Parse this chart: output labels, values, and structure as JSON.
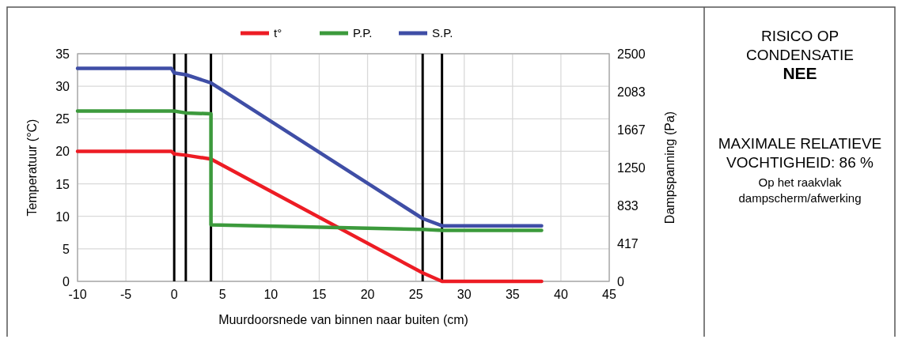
{
  "chart_data": [
    {
      "type": "line",
      "xlabel": "Muurdoorsnede van binnen naar buiten (cm)",
      "ylabel": "Temperatuur (°C)",
      "y2label": "Dampspanning (Pa)",
      "xlim": [
        -10,
        45
      ],
      "xticks": [
        -10,
        -5,
        0,
        5,
        10,
        15,
        20,
        25,
        30,
        35,
        40,
        45
      ],
      "ylim": [
        0,
        35
      ],
      "yticks": [
        0,
        5,
        10,
        15,
        20,
        25,
        30,
        35
      ],
      "y2lim": [
        0,
        2500
      ],
      "y2ticks": [
        0,
        417,
        833,
        1250,
        1667,
        2083,
        2500
      ],
      "grid": true,
      "legend": "top",
      "marker": "none",
      "line_style": "solid",
      "series": [
        {
          "name": "t°",
          "color": "#ed1c24",
          "x": [
            -10,
            -0.3,
            0,
            1.2,
            3.8,
            25.7,
            27.7,
            38
          ],
          "values": [
            20,
            20,
            19.6,
            19.4,
            18.8,
            1.3,
            0,
            0
          ]
        },
        {
          "name": "P.P.",
          "color": "#3c9a3c",
          "axis": "y2",
          "x": [
            -10,
            0,
            1.2,
            3.8,
            3.8,
            25.7,
            27.7,
            38
          ],
          "values": [
            1870,
            1870,
            1850,
            1840,
            620,
            570,
            560,
            560
          ]
        },
        {
          "name": "S.P.",
          "color": "#3f4ea6",
          "axis": "y2",
          "x": [
            -10,
            -0.3,
            0,
            1.2,
            3.8,
            25.7,
            27.7,
            38
          ],
          "values": [
            2340,
            2340,
            2290,
            2270,
            2180,
            690,
            610,
            610
          ]
        }
      ],
      "ref_lines": [
        {
          "axis": "x",
          "value": 0,
          "color": "#000000"
        },
        {
          "axis": "x",
          "value": 1.2,
          "color": "#000000"
        },
        {
          "axis": "x",
          "value": 3.8,
          "color": "#000000"
        },
        {
          "axis": "x",
          "value": 25.7,
          "color": "#000000"
        },
        {
          "axis": "x",
          "value": 27.7,
          "color": "#000000"
        }
      ]
    },
    {
      "type": "other",
      "title": "RISICO OP CONDENSATIE",
      "annotations": [
        "NEE",
        "MAXIMALE RELATIEVE VOCHTIGHEID: 86 %",
        "Op het raakvlak dampscherm/afwerking"
      ]
    }
  ]
}
